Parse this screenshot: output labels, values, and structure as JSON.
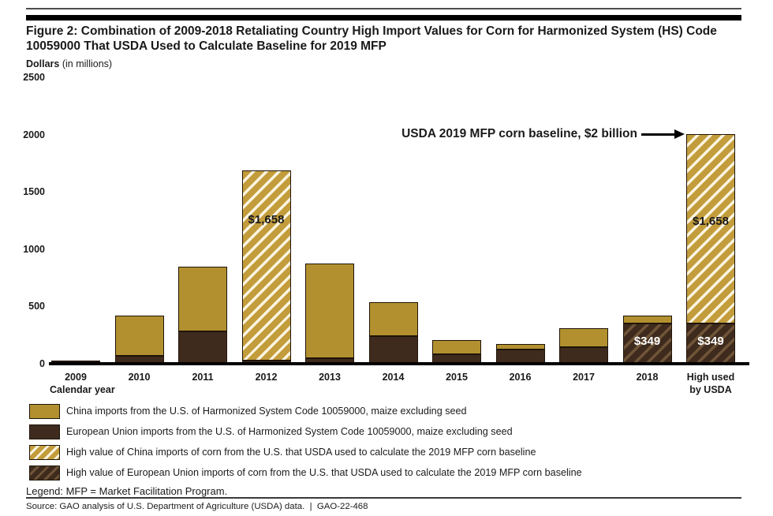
{
  "header": {
    "title": "Figure 2: Combination of 2009-2018 Retaliating Country High Import Values for Corn for Harmonized System (HS) Code 10059000 That USDA Used to Calculate Baseline for 2019 MFP"
  },
  "chart_data": {
    "type": "bar",
    "stacked": true,
    "ylabel_bold": "Dollars",
    "ylabel_rest": " (in millions)",
    "xlabel": "Calendar year",
    "ylim": [
      0,
      2500
    ],
    "yticks": [
      2500,
      2000,
      1500,
      1000,
      500,
      0
    ],
    "grid": false,
    "annotation": "USDA 2019 MFP corn baseline, $2 billion",
    "bars": [
      {
        "category": "2009",
        "segments": [
          {
            "series": "eu",
            "value": 20
          },
          {
            "series": "china",
            "value": 8
          }
        ]
      },
      {
        "category": "2010",
        "segments": [
          {
            "series": "eu",
            "value": 70
          },
          {
            "series": "china",
            "value": 350
          }
        ]
      },
      {
        "category": "2011",
        "segments": [
          {
            "series": "eu",
            "value": 280
          },
          {
            "series": "china",
            "value": 565
          }
        ]
      },
      {
        "category": "2012",
        "segments": [
          {
            "series": "eu",
            "value": 30
          },
          {
            "series": "china_high",
            "value": 1658,
            "label": "$1,658",
            "label_frac": 0.26
          }
        ]
      },
      {
        "category": "2013",
        "segments": [
          {
            "series": "eu",
            "value": 45
          },
          {
            "series": "china",
            "value": 830
          }
        ]
      },
      {
        "category": "2014",
        "segments": [
          {
            "series": "eu",
            "value": 240
          },
          {
            "series": "china",
            "value": 295
          }
        ]
      },
      {
        "category": "2015",
        "segments": [
          {
            "series": "eu",
            "value": 80
          },
          {
            "series": "china",
            "value": 125
          }
        ]
      },
      {
        "category": "2016",
        "segments": [
          {
            "series": "eu",
            "value": 125
          },
          {
            "series": "china",
            "value": 50
          }
        ]
      },
      {
        "category": "2017",
        "segments": [
          {
            "series": "eu",
            "value": 145
          },
          {
            "series": "china",
            "value": 165
          }
        ]
      },
      {
        "category": "2018",
        "segments": [
          {
            "series": "eu_high",
            "value": 349,
            "label": "$349",
            "label_frac": 0.45
          },
          {
            "series": "china",
            "value": 70
          }
        ]
      },
      {
        "category": "High used\nby USDA",
        "segments": [
          {
            "series": "eu_high",
            "value": 349,
            "label": "$349",
            "label_frac": 0.45
          },
          {
            "series": "china_high",
            "value": 1658,
            "label": "$1,658",
            "label_frac": 0.46
          }
        ]
      }
    ],
    "colors": {
      "china": "#B2902F",
      "eu": "#3F2B1D",
      "china_high_base": "#C39C3B",
      "china_high_stripe": "#FBF4E0",
      "eu_high_base": "#3F2B1D",
      "eu_high_stripe": "#6F5438",
      "outline": "#1E1409",
      "label_on_gold": "#1A1A1A",
      "label_on_dark": "#FFFFFF"
    }
  },
  "legend": {
    "items": [
      {
        "series": "china",
        "label": "China imports from the U.S. of Harmonized System Code 10059000, maize excluding seed"
      },
      {
        "series": "eu",
        "label": "European Union imports from the U.S. of Harmonized System Code 10059000, maize excluding seed"
      },
      {
        "series": "china_high",
        "label": "High value of China imports of corn from the U.S. that USDA used to calculate the 2019 MFP corn baseline"
      },
      {
        "series": "eu_high",
        "label": "High value of European Union imports of corn from the U.S. that USDA used to calculate the 2019 MFP corn baseline"
      }
    ]
  },
  "footer": {
    "legend_note": "Legend: MFP = Market Facilitation Program.",
    "source": "Source: GAO analysis of U.S. Department of Agriculture (USDA) data.  |  GAO-22-468"
  }
}
